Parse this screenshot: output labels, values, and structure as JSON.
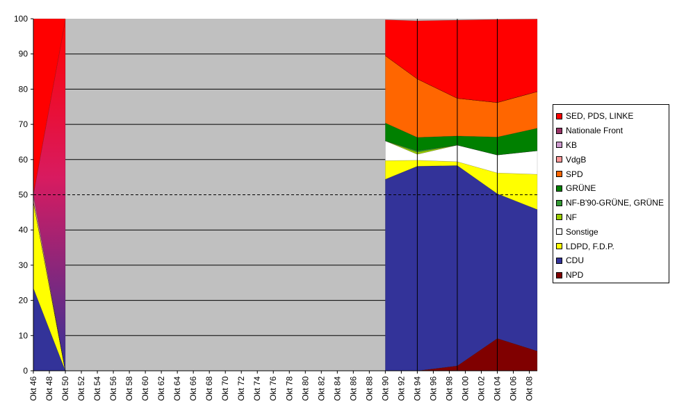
{
  "chart_data": {
    "type": "area",
    "stacked": true,
    "normalized_percent": true,
    "ylim": [
      0,
      100
    ],
    "y_ticks": [
      0,
      10,
      20,
      30,
      40,
      50,
      60,
      70,
      80,
      90,
      100
    ],
    "x_ticks": [
      "Okt 46",
      "Okt 48",
      "Okt 50",
      "Okt 52",
      "Okt 54",
      "Okt 56",
      "Okt 58",
      "Okt 60",
      "Okt 62",
      "Okt 64",
      "Okt 66",
      "Okt 68",
      "Okt 70",
      "Okt 72",
      "Okt 74",
      "Okt 76",
      "Okt 78",
      "Okt 80",
      "Okt 82",
      "Okt 84",
      "Okt 86",
      "Okt 88",
      "Okt 90",
      "Okt 92",
      "Okt 94",
      "Okt 96",
      "Okt 98",
      "Okt 00",
      "Okt 02",
      "Okt 04",
      "Okt 06",
      "Okt 08"
    ],
    "reference_line": 50,
    "grid": true,
    "legend_position": "right",
    "plot_background": "#c0c0c0",
    "gap_start": "Okt 50",
    "gap_end": "Okt 90",
    "vertical_lines_at": [
      "Okt 94",
      "Okt 99",
      "Okt 04"
    ],
    "x_positions_years": [
      1946,
      1950,
      1990,
      1994,
      1999,
      2004,
      2009
    ],
    "series": [
      {
        "name": "NPD",
        "color": "#800000",
        "values": [
          0,
          0,
          0,
          0,
          1.4,
          9.2,
          5.6
        ]
      },
      {
        "name": "CDU",
        "color": "#333399",
        "values": [
          23.5,
          0,
          54.4,
          58.1,
          56.9,
          41.1,
          40.2
        ]
      },
      {
        "name": "LDPD, F.D.P.",
        "color": "#ffff00",
        "values": [
          24.6,
          0,
          5.3,
          1.7,
          1.1,
          5.9,
          10.0
        ]
      },
      {
        "name": "Sonstige",
        "color": "#ffffff",
        "values": [
          0,
          0,
          5.6,
          1.7,
          4.7,
          5.1,
          6.7
        ]
      },
      {
        "name": "NF",
        "color": "#99cc00",
        "values": [
          0,
          0,
          0,
          0.6,
          0,
          0,
          0
        ]
      },
      {
        "name": "NF-B'90-GRÜNE, GRÜNE",
        "color": "#339933",
        "values": [
          0,
          0,
          0,
          0.4,
          0,
          0,
          0
        ]
      },
      {
        "name": "GRÜNE",
        "color": "#008000",
        "values": [
          0,
          0,
          5.1,
          3.8,
          2.6,
          5.1,
          6.4
        ]
      },
      {
        "name": "SPD",
        "color": "#ff6600",
        "values": [
          0,
          0,
          19.1,
          16.6,
          10.7,
          9.8,
          10.4
        ]
      },
      {
        "name": "VdgB",
        "color": "#ff9999",
        "values": [
          1.3,
          0,
          0,
          0,
          0,
          0,
          0
        ]
      },
      {
        "name": "KB",
        "color": "#cc99cc",
        "values": [
          0.6,
          0,
          0,
          0,
          0,
          0,
          0
        ]
      },
      {
        "name": "Nationale Front",
        "color": "#993366",
        "values": [
          0,
          99.7,
          0,
          0,
          0,
          0,
          0
        ]
      },
      {
        "name": "SED, PDS, LINKE",
        "color": "#ff0000",
        "values": [
          50.0,
          0.3,
          10.2,
          16.5,
          22.2,
          23.6,
          20.6
        ]
      }
    ]
  },
  "legend": {
    "items": [
      {
        "label": "SED, PDS, LINKE",
        "color": "#ff0000"
      },
      {
        "label": "Nationale Front",
        "color": "#993366"
      },
      {
        "label": "KB",
        "color": "#cc99cc"
      },
      {
        "label": "VdgB",
        "color": "#ff9999"
      },
      {
        "label": "SPD",
        "color": "#ff6600"
      },
      {
        "label": "GRÜNE",
        "color": "#008000"
      },
      {
        "label": "NF-B'90-GRÜNE, GRÜNE",
        "color": "#339933"
      },
      {
        "label": "NF",
        "color": "#99cc00"
      },
      {
        "label": "Sonstige",
        "color": "#ffffff"
      },
      {
        "label": "LDPD, F.D.P.",
        "color": "#ffff00"
      },
      {
        "label": "CDU",
        "color": "#333399"
      },
      {
        "label": "NPD",
        "color": "#800000"
      }
    ]
  }
}
